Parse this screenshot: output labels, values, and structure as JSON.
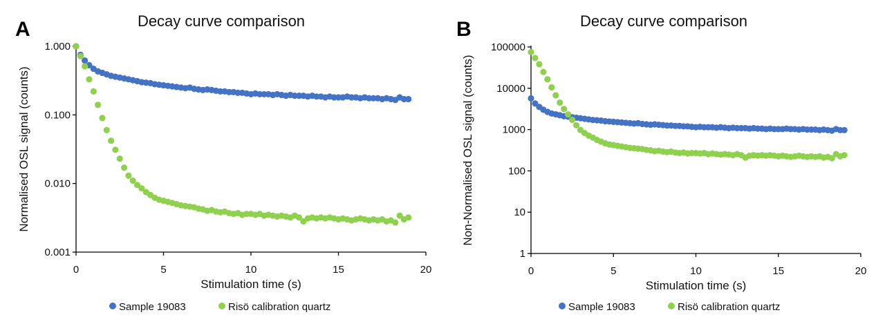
{
  "colors": {
    "sample": "#4472c4",
    "riso": "#8fd14f"
  },
  "chart_data": [
    {
      "type": "scatter",
      "panel_label": "A",
      "title": "Decay curve comparison",
      "xlabel": "Stimulation time (s)",
      "ylabel": "Normalised OSL signal (counts)",
      "xlim": [
        0,
        20
      ],
      "ylim": [
        0.001,
        1
      ],
      "yscale": "log",
      "xticks": [
        "0",
        "5",
        "10",
        "15",
        "20"
      ],
      "yticks": [
        "0.001",
        "0.010",
        "0.100",
        "1.000"
      ],
      "legend_position": "bottom",
      "grid": false,
      "x": [
        0,
        0.25,
        0.5,
        0.75,
        1,
        1.25,
        1.5,
        1.75,
        2,
        2.25,
        2.5,
        2.75,
        3,
        3.25,
        3.5,
        3.75,
        4,
        4.25,
        4.5,
        4.75,
        5,
        5.25,
        5.5,
        5.75,
        6,
        6.25,
        6.5,
        6.75,
        7,
        7.25,
        7.5,
        7.75,
        8,
        8.25,
        8.5,
        8.75,
        9,
        9.25,
        9.5,
        9.75,
        10,
        10.25,
        10.5,
        10.75,
        11,
        11.25,
        11.5,
        11.75,
        12,
        12.25,
        12.5,
        12.75,
        13,
        13.25,
        13.5,
        13.75,
        14,
        14.25,
        14.5,
        14.75,
        15,
        15.25,
        15.5,
        15.75,
        16,
        16.25,
        16.5,
        16.75,
        17,
        17.25,
        17.5,
        17.75,
        18,
        18.25,
        18.5,
        18.75,
        19
      ],
      "series": [
        {
          "name": "Sample 19083",
          "values": [
            1.0,
            0.75,
            0.62,
            0.53,
            0.47,
            0.43,
            0.41,
            0.39,
            0.37,
            0.36,
            0.35,
            0.34,
            0.33,
            0.32,
            0.31,
            0.3,
            0.295,
            0.29,
            0.28,
            0.275,
            0.27,
            0.265,
            0.26,
            0.255,
            0.25,
            0.245,
            0.25,
            0.24,
            0.235,
            0.23,
            0.235,
            0.23,
            0.225,
            0.22,
            0.22,
            0.215,
            0.215,
            0.21,
            0.21,
            0.205,
            0.2,
            0.205,
            0.2,
            0.2,
            0.2,
            0.195,
            0.2,
            0.195,
            0.19,
            0.195,
            0.19,
            0.19,
            0.19,
            0.185,
            0.19,
            0.185,
            0.185,
            0.18,
            0.185,
            0.18,
            0.18,
            0.18,
            0.185,
            0.18,
            0.18,
            0.175,
            0.18,
            0.175,
            0.175,
            0.175,
            0.17,
            0.175,
            0.17,
            0.165,
            0.18,
            0.17,
            0.17
          ]
        },
        {
          "name": "Risö calibration quartz",
          "values": [
            1.0,
            0.72,
            0.51,
            0.33,
            0.22,
            0.14,
            0.09,
            0.06,
            0.042,
            0.031,
            0.023,
            0.017,
            0.013,
            0.011,
            0.0095,
            0.0085,
            0.0075,
            0.0068,
            0.0062,
            0.0058,
            0.0056,
            0.0054,
            0.0052,
            0.005,
            0.0048,
            0.0047,
            0.0046,
            0.0045,
            0.0043,
            0.0042,
            0.004,
            0.0041,
            0.0039,
            0.0038,
            0.0039,
            0.0037,
            0.0036,
            0.0037,
            0.0035,
            0.0036,
            0.0036,
            0.0035,
            0.0036,
            0.0034,
            0.0035,
            0.0034,
            0.0033,
            0.0034,
            0.0033,
            0.0032,
            0.0034,
            0.0032,
            0.0028,
            0.0031,
            0.0032,
            0.0031,
            0.0032,
            0.0031,
            0.0032,
            0.0031,
            0.003,
            0.0031,
            0.003,
            0.0029,
            0.003,
            0.0031,
            0.003,
            0.0029,
            0.003,
            0.0029,
            0.003,
            0.0028,
            0.0029,
            0.0027,
            0.0034,
            0.003,
            0.0032
          ]
        }
      ]
    },
    {
      "type": "scatter",
      "panel_label": "B",
      "title": "Decay curve comparison",
      "xlabel": "Stimulation time (s)",
      "ylabel": "Non-Normalised OSL signal (counts)",
      "xlim": [
        0,
        20
      ],
      "ylim": [
        1,
        100000
      ],
      "yscale": "log",
      "xticks": [
        "0",
        "5",
        "10",
        "15",
        "20"
      ],
      "yticks": [
        "1",
        "10",
        "100",
        "1000",
        "10000",
        "100000"
      ],
      "legend_position": "bottom",
      "grid": false,
      "x": [
        0,
        0.25,
        0.5,
        0.75,
        1,
        1.25,
        1.5,
        1.75,
        2,
        2.25,
        2.5,
        2.75,
        3,
        3.25,
        3.5,
        3.75,
        4,
        4.25,
        4.5,
        4.75,
        5,
        5.25,
        5.5,
        5.75,
        6,
        6.25,
        6.5,
        6.75,
        7,
        7.25,
        7.5,
        7.75,
        8,
        8.25,
        8.5,
        8.75,
        9,
        9.25,
        9.5,
        9.75,
        10,
        10.25,
        10.5,
        10.75,
        11,
        11.25,
        11.5,
        11.75,
        12,
        12.25,
        12.5,
        12.75,
        13,
        13.25,
        13.5,
        13.75,
        14,
        14.25,
        14.5,
        14.75,
        15,
        15.25,
        15.5,
        15.75,
        16,
        16.25,
        16.5,
        16.75,
        17,
        17.25,
        17.5,
        17.75,
        18,
        18.25,
        18.5,
        18.75,
        19
      ],
      "series": [
        {
          "name": "Sample 19083",
          "values": [
            5700,
            4275,
            3534,
            3021,
            2679,
            2451,
            2337,
            2223,
            2109,
            2052,
            1995,
            1938,
            1881,
            1824,
            1767,
            1710,
            1682,
            1653,
            1596,
            1568,
            1539,
            1511,
            1482,
            1454,
            1425,
            1397,
            1425,
            1368,
            1340,
            1311,
            1340,
            1311,
            1283,
            1254,
            1254,
            1226,
            1226,
            1197,
            1197,
            1169,
            1140,
            1169,
            1140,
            1140,
            1140,
            1112,
            1140,
            1112,
            1083,
            1112,
            1083,
            1083,
            1083,
            1055,
            1083,
            1055,
            1055,
            1026,
            1055,
            1026,
            1026,
            1026,
            1055,
            1026,
            1026,
            998,
            1026,
            998,
            998,
            998,
            969,
            998,
            969,
            941,
            1026,
            969,
            969
          ]
        },
        {
          "name": "Risö calibration quartz",
          "values": [
            75000,
            54000,
            38250,
            24750,
            16500,
            10500,
            6750,
            4500,
            3150,
            2325,
            1725,
            1275,
            975,
            825,
            713,
            638,
            563,
            510,
            465,
            435,
            420,
            405,
            390,
            375,
            360,
            353,
            345,
            338,
            323,
            315,
            300,
            308,
            293,
            285,
            293,
            278,
            270,
            278,
            263,
            270,
            270,
            263,
            270,
            255,
            263,
            255,
            248,
            255,
            248,
            240,
            255,
            240,
            210,
            233,
            240,
            233,
            240,
            233,
            240,
            233,
            225,
            233,
            225,
            218,
            225,
            233,
            225,
            218,
            225,
            218,
            225,
            210,
            218,
            203,
            255,
            225,
            240
          ]
        }
      ]
    }
  ]
}
